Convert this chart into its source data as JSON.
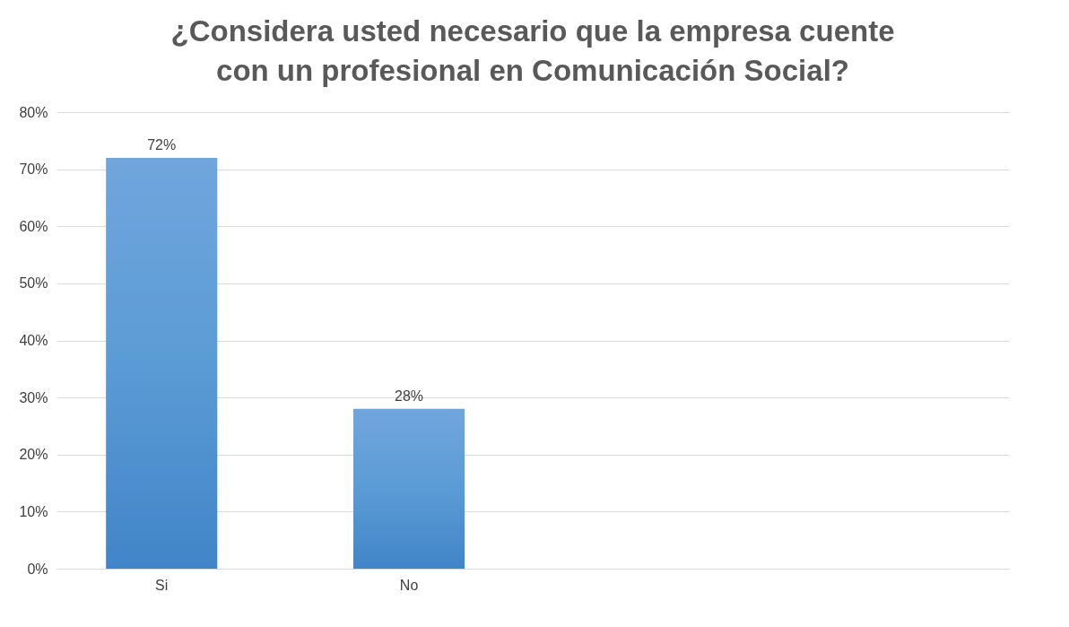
{
  "chart_data": {
    "type": "bar",
    "title": "¿Considera usted necesario que la empresa cuente con un profesional en Comunicación Social?",
    "categories": [
      "Si",
      "No",
      null,
      null
    ],
    "values": [
      72,
      28,
      null,
      null
    ],
    "color": "#5b9bd5",
    "value_labels": [
      "72%",
      "28%",
      null,
      null
    ],
    "ylim": [
      0,
      80
    ],
    "yticks": [
      {
        "value": 0,
        "label": "0%"
      },
      {
        "value": 10,
        "label": "10%"
      },
      {
        "value": 20,
        "label": "20%"
      },
      {
        "value": 30,
        "label": "30%"
      },
      {
        "value": 40,
        "label": "40%"
      },
      {
        "value": 50,
        "label": "50%"
      },
      {
        "value": 60,
        "label": "60%"
      },
      {
        "value": 70,
        "label": "70%"
      },
      {
        "value": 80,
        "label": "80%"
      }
    ],
    "grid": "y"
  }
}
